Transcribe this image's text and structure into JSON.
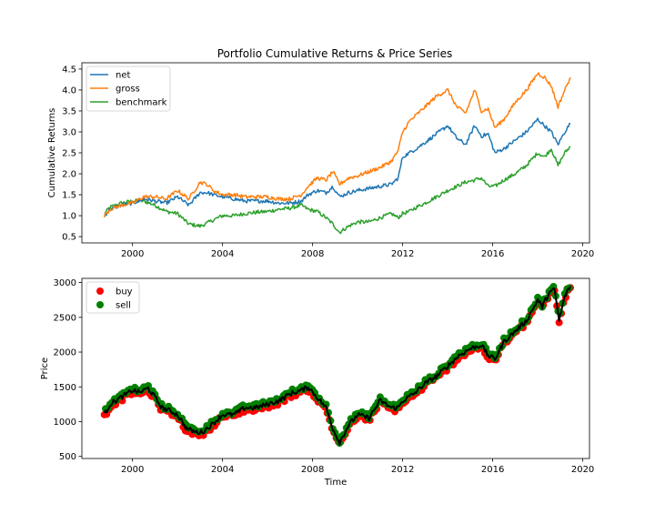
{
  "chart_data": [
    {
      "type": "line",
      "title": "Portfolio Cumulative Returns & Price Series",
      "xlabel": "",
      "ylabel": "Cumulative Returns",
      "xlim": [
        1997.75,
        2020.3
      ],
      "ylim": [
        0.35,
        4.65
      ],
      "xticks": [
        2000,
        2004,
        2008,
        2012,
        2016,
        2020
      ],
      "yticks": [
        0.5,
        1.0,
        1.5,
        2.0,
        2.5,
        3.0,
        3.5,
        4.0,
        4.5
      ],
      "xtick_labels": [
        "2000",
        "2004",
        "2008",
        "2012",
        "2016",
        "2020"
      ],
      "ytick_labels": [
        "0.5",
        "1.0",
        "1.5",
        "2.0",
        "2.5",
        "3.0",
        "3.5",
        "4.0",
        "4.5"
      ],
      "legend": "top-left",
      "grid": false,
      "series": [
        {
          "name": "net",
          "color": "#1f77b4",
          "x": [
            1998.75,
            1999.0,
            1999.5,
            2000.0,
            2000.5,
            2001.0,
            2001.5,
            2002.0,
            2002.5,
            2003.0,
            2003.3,
            2003.6,
            2004.0,
            2004.5,
            2005.0,
            2005.5,
            2006.0,
            2006.5,
            2007.0,
            2007.5,
            2007.8,
            2008.2,
            2008.6,
            2008.9,
            2009.2,
            2009.6,
            2010.0,
            2010.5,
            2011.0,
            2011.5,
            2011.8,
            2012.0,
            2012.3,
            2012.6,
            2013.0,
            2013.5,
            2014.0,
            2014.4,
            2014.8,
            2015.2,
            2015.5,
            2015.8,
            2016.1,
            2016.5,
            2017.0,
            2017.5,
            2018.0,
            2018.3,
            2018.6,
            2018.9,
            2019.2,
            2019.45
          ],
          "y": [
            1.0,
            1.15,
            1.25,
            1.3,
            1.4,
            1.35,
            1.3,
            1.45,
            1.25,
            1.55,
            1.55,
            1.5,
            1.45,
            1.4,
            1.35,
            1.35,
            1.35,
            1.3,
            1.3,
            1.35,
            1.5,
            1.6,
            1.55,
            1.7,
            1.45,
            1.55,
            1.6,
            1.65,
            1.7,
            1.75,
            1.9,
            2.4,
            2.5,
            2.6,
            2.75,
            2.95,
            3.15,
            2.85,
            2.7,
            3.15,
            2.9,
            2.95,
            2.5,
            2.6,
            2.8,
            3.0,
            3.3,
            3.15,
            3.0,
            2.7,
            3.0,
            3.2
          ]
        },
        {
          "name": "gross",
          "color": "#ff7f0e",
          "x": [
            1998.75,
            1999.0,
            1999.5,
            2000.0,
            2000.5,
            2001.0,
            2001.5,
            2002.0,
            2002.5,
            2003.0,
            2003.3,
            2003.6,
            2004.0,
            2004.5,
            2005.0,
            2005.5,
            2006.0,
            2006.5,
            2007.0,
            2007.5,
            2007.8,
            2008.2,
            2008.6,
            2008.9,
            2009.2,
            2009.6,
            2010.0,
            2010.5,
            2011.0,
            2011.5,
            2011.8,
            2012.0,
            2012.3,
            2012.6,
            2013.0,
            2013.5,
            2014.0,
            2014.4,
            2014.8,
            2015.2,
            2015.5,
            2015.8,
            2016.1,
            2016.5,
            2017.0,
            2017.5,
            2018.0,
            2018.3,
            2018.6,
            2018.9,
            2019.2,
            2019.45
          ],
          "y": [
            1.0,
            1.15,
            1.25,
            1.3,
            1.45,
            1.45,
            1.4,
            1.6,
            1.4,
            1.8,
            1.75,
            1.6,
            1.5,
            1.5,
            1.45,
            1.45,
            1.45,
            1.4,
            1.4,
            1.5,
            1.7,
            1.9,
            1.85,
            2.05,
            1.75,
            1.9,
            1.95,
            2.05,
            2.15,
            2.3,
            2.55,
            3.0,
            3.25,
            3.4,
            3.6,
            3.85,
            4.0,
            3.6,
            3.45,
            4.0,
            3.5,
            3.55,
            3.1,
            3.3,
            3.7,
            4.0,
            4.4,
            4.3,
            4.1,
            3.6,
            4.0,
            4.3
          ]
        },
        {
          "name": "benchmark",
          "color": "#2ca02c",
          "x": [
            1998.75,
            1999.0,
            1999.5,
            2000.0,
            2000.5,
            2001.0,
            2001.5,
            2002.0,
            2002.5,
            2003.0,
            2003.3,
            2003.6,
            2004.0,
            2004.5,
            2005.0,
            2005.5,
            2006.0,
            2006.5,
            2007.0,
            2007.5,
            2007.8,
            2008.2,
            2008.6,
            2008.9,
            2009.2,
            2009.6,
            2010.0,
            2010.5,
            2011.0,
            2011.5,
            2011.8,
            2012.0,
            2012.3,
            2012.6,
            2013.0,
            2013.5,
            2014.0,
            2014.4,
            2014.8,
            2015.2,
            2015.5,
            2015.8,
            2016.1,
            2016.5,
            2017.0,
            2017.5,
            2018.0,
            2018.3,
            2018.6,
            2018.9,
            2019.2,
            2019.45
          ],
          "y": [
            1.05,
            1.2,
            1.3,
            1.35,
            1.35,
            1.25,
            1.1,
            1.05,
            0.8,
            0.75,
            0.82,
            0.9,
            1.0,
            1.0,
            1.05,
            1.08,
            1.1,
            1.15,
            1.18,
            1.25,
            1.15,
            1.1,
            0.95,
            0.8,
            0.6,
            0.75,
            0.85,
            0.85,
            0.95,
            1.05,
            0.95,
            1.05,
            1.1,
            1.2,
            1.3,
            1.45,
            1.6,
            1.7,
            1.8,
            1.85,
            1.9,
            1.7,
            1.7,
            1.85,
            2.0,
            2.2,
            2.5,
            2.4,
            2.6,
            2.2,
            2.5,
            2.65
          ]
        }
      ]
    },
    {
      "type": "scatter",
      "title": "",
      "xlabel": "Time",
      "ylabel": "Price",
      "xlim": [
        1997.75,
        2020.3
      ],
      "ylim": [
        470,
        3060
      ],
      "xticks": [
        2000,
        2004,
        2008,
        2012,
        2016,
        2020
      ],
      "yticks": [
        500,
        1000,
        1500,
        2000,
        2500,
        3000
      ],
      "xtick_labels": [
        "2000",
        "2004",
        "2008",
        "2012",
        "2016",
        "2020"
      ],
      "ytick_labels": [
        "500",
        "1000",
        "1500",
        "2000",
        "2500",
        "3000"
      ],
      "legend": "top-left",
      "grid": false,
      "price": {
        "color": "#000000",
        "x": [
          1998.75,
          1999.0,
          1999.5,
          2000.0,
          2000.3,
          2000.7,
          2001.0,
          2001.3,
          2001.7,
          2002.0,
          2002.4,
          2002.8,
          2003.1,
          2003.5,
          2004.0,
          2004.5,
          2005.0,
          2005.5,
          2006.0,
          2006.5,
          2007.0,
          2007.5,
          2007.8,
          2008.2,
          2008.6,
          2008.9,
          2009.2,
          2009.6,
          2010.0,
          2010.5,
          2011.0,
          2011.5,
          2011.8,
          2012.0,
          2012.5,
          2013.0,
          2013.5,
          2014.0,
          2014.5,
          2015.0,
          2015.5,
          2015.8,
          2016.1,
          2016.5,
          2017.0,
          2017.5,
          2018.0,
          2018.2,
          2018.5,
          2018.75,
          2018.95,
          2019.2,
          2019.45
        ],
        "y": [
          1100,
          1250,
          1350,
          1450,
          1420,
          1480,
          1350,
          1200,
          1150,
          1100,
          900,
          850,
          850,
          950,
          1100,
          1100,
          1200,
          1200,
          1250,
          1300,
          1400,
          1450,
          1500,
          1350,
          1200,
          900,
          700,
          950,
          1100,
          1050,
          1300,
          1200,
          1200,
          1300,
          1400,
          1550,
          1650,
          1800,
          1950,
          2050,
          2100,
          1950,
          1900,
          2150,
          2300,
          2450,
          2750,
          2650,
          2850,
          2900,
          2450,
          2800,
          2950
        ]
      },
      "series": [
        {
          "name": "buy",
          "color": "#ff0000"
        },
        {
          "name": "sell",
          "color": "#008000"
        }
      ]
    }
  ]
}
